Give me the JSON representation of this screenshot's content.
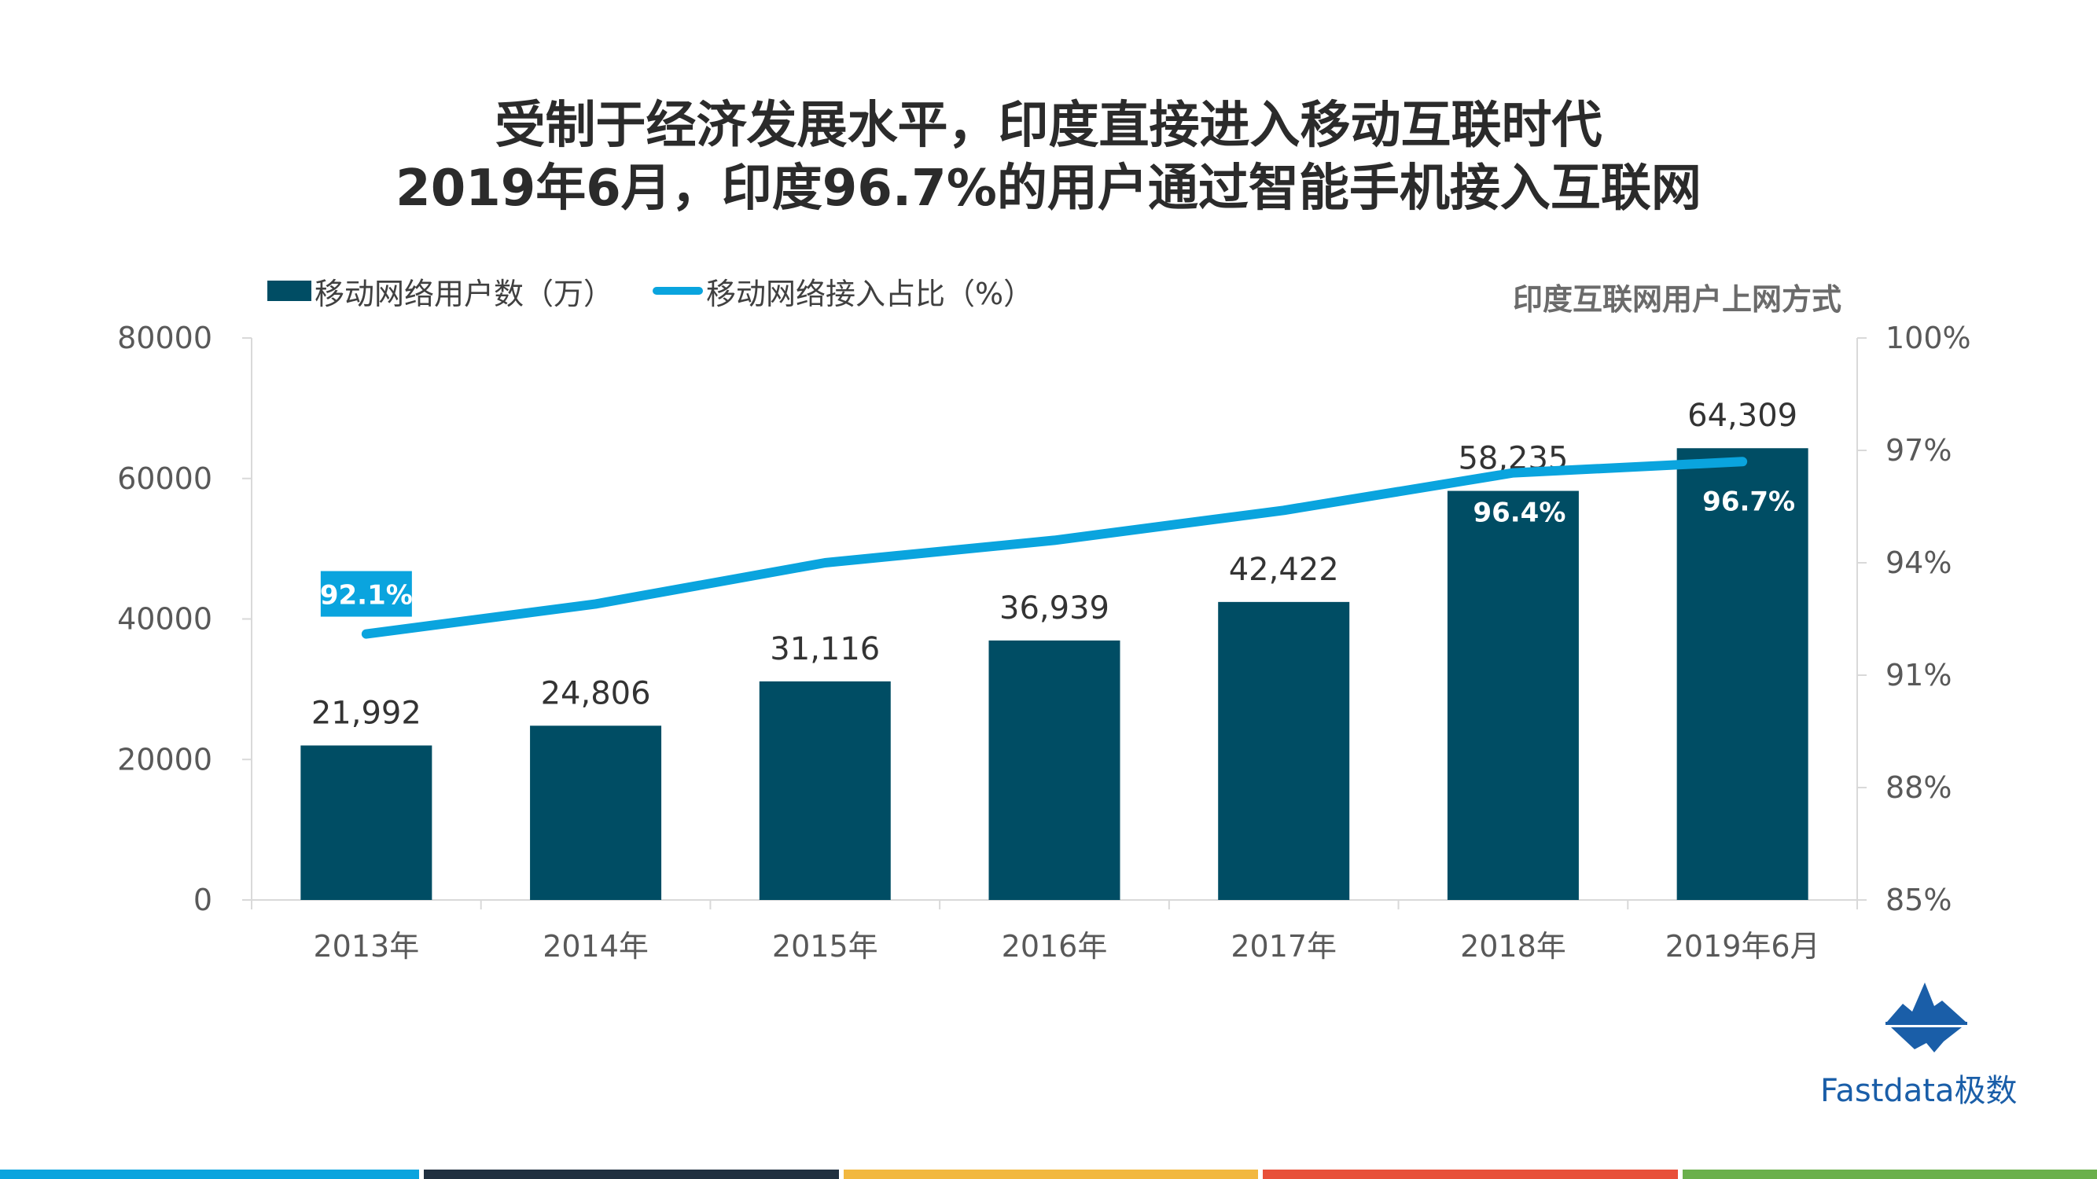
{
  "title": {
    "line1": "受制于经济发展水平，印度直接进入移动互联时代",
    "line2": "2019年6月，印度96.7%的用户通过智能手机接入互联网"
  },
  "chart_subtitle": "印度互联网用户上网方式",
  "legend": {
    "bar": "移动网络用户数（万）",
    "line": "移动网络接入占比（%）"
  },
  "logo_text": "Fastdata极数",
  "colors": {
    "bar": "#004d64",
    "line": "#0aa4de",
    "footer": [
      "#0aa4de",
      "#203040",
      "#f2b840",
      "#e8503a",
      "#6ab04c"
    ]
  },
  "chart_data": {
    "type": "bar+line",
    "categories": [
      "2013年",
      "2014年",
      "2015年",
      "2016年",
      "2017年",
      "2018年",
      "2019年6月"
    ],
    "series": [
      {
        "name": "移动网络用户数（万）",
        "type": "bar",
        "axis": "left",
        "values": [
          21992,
          24806,
          31116,
          36939,
          42422,
          58235,
          64309
        ],
        "labels": [
          "21,992",
          "24,806",
          "31,116",
          "36,939",
          "42,422",
          "58,235",
          "64,309"
        ]
      },
      {
        "name": "移动网络接入占比（%）",
        "type": "line",
        "axis": "right",
        "values": [
          92.1,
          92.9,
          94.0,
          94.6,
          95.4,
          96.4,
          96.7
        ],
        "labels": [
          "92.1%",
          "",
          "",
          "",
          "",
          "96.4%",
          "96.7%"
        ]
      }
    ],
    "y_left": {
      "min": 0,
      "max": 80000,
      "ticks": [
        "0",
        "20000",
        "40000",
        "60000",
        "80000"
      ]
    },
    "y_right": {
      "min": 85,
      "max": 100,
      "ticks": [
        "85%",
        "88%",
        "91%",
        "94%",
        "97%",
        "100%"
      ]
    },
    "grid": false,
    "legend_position": "top-left"
  }
}
